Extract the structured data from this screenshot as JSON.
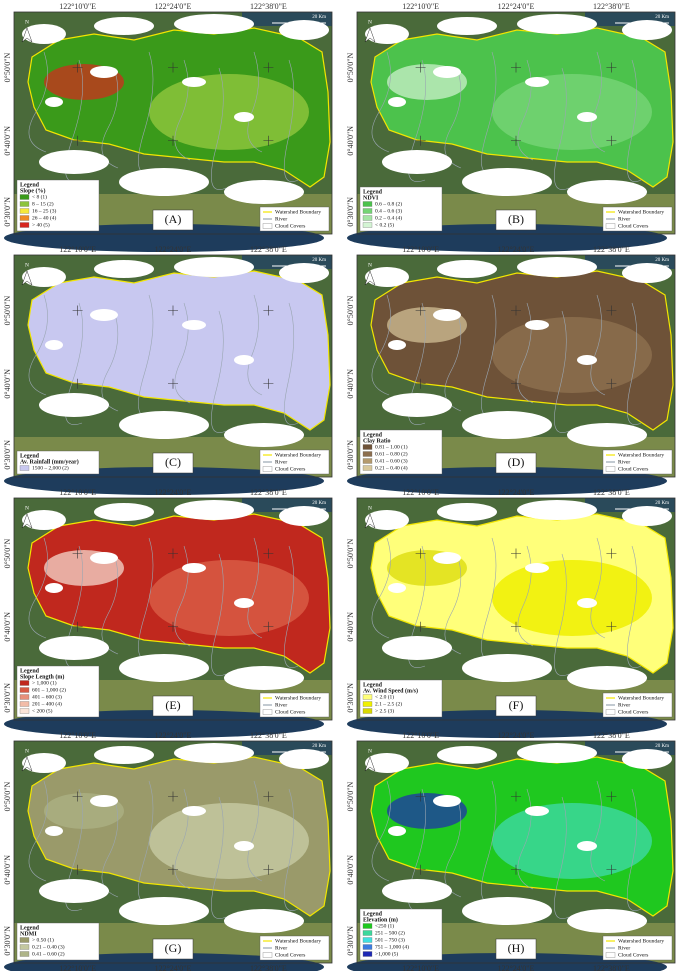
{
  "x_labels": [
    "122°10'0\"E",
    "122°24'0\"E",
    "122°38'0\"E"
  ],
  "y_labels": [
    "0°50'0\"N",
    "0°40'0\"N",
    "0°30'0\"N"
  ],
  "scale_label": "20 Km",
  "north_label": "N",
  "common_legend": [
    {
      "text": "Watershed Boundary",
      "color": "#f2e600"
    },
    {
      "text": "River",
      "color": "#9aa6b2"
    },
    {
      "text": "Cloud Covers",
      "color": "#ffffff"
    }
  ],
  "panels": [
    {
      "label": "(A)",
      "legend": "Legend",
      "title": "Slope (%)",
      "items": [
        {
          "text": "< 8 (1)",
          "color": "#3a9a1a"
        },
        {
          "text": "8 – 15 (2)",
          "color": "#8cc43c"
        },
        {
          "text": "16 – 25 (3)",
          "color": "#f5e83a"
        },
        {
          "text": "26 – 40 (4)",
          "color": "#f08a24"
        },
        {
          "text": "> 40 (5)",
          "color": "#d7261e"
        }
      ]
    },
    {
      "label": "(B)",
      "legend": "Legend",
      "title": "NDVI",
      "items": [
        {
          "text": "0.6 – 0.8 (2)",
          "color": "#4cc24c"
        },
        {
          "text": "0.4 – 0.6 (3)",
          "color": "#74d474"
        },
        {
          "text": "0.2 – 0.4 (4)",
          "color": "#a4e4a4"
        },
        {
          "text": "< 0.2 (5)",
          "color": "#d4f4d4"
        }
      ]
    },
    {
      "label": "(C)",
      "legend": "Legend",
      "title": "Av. Rainfall (mm/year)",
      "items": [
        {
          "text": "1500 – 2,000 (2)",
          "color": "#c8c8f0"
        }
      ]
    },
    {
      "label": "(D)",
      "legend": "Legend",
      "title": "Clay Ratio",
      "items": [
        {
          "text": "0.81 – 1.00 (1)",
          "color": "#6e5238"
        },
        {
          "text": "0.61 – 0.80 (2)",
          "color": "#8c6e4e"
        },
        {
          "text": "0.41 – 0.60 (3)",
          "color": "#b49a6e"
        },
        {
          "text": "0.21 – 0.40 (4)",
          "color": "#d8c89c"
        }
      ]
    },
    {
      "label": "(E)",
      "legend": "Legend",
      "title": "Slope Length (m)",
      "items": [
        {
          "text": "> 1,000 (1)",
          "color": "#c0281e"
        },
        {
          "text": "601 – 1,000 (2)",
          "color": "#d85a44"
        },
        {
          "text": "401 – 600 (3)",
          "color": "#e8907a"
        },
        {
          "text": "201 – 400 (4)",
          "color": "#f2bca8"
        },
        {
          "text": "< 200 (5)",
          "color": "#fae4d8"
        }
      ]
    },
    {
      "label": "(F)",
      "legend": "Legend",
      "title": "Av. Wind Speed (m/s)",
      "items": [
        {
          "text": "< 2.0 (1)",
          "color": "#ffff7a"
        },
        {
          "text": "2.1 – 2.5 (2)",
          "color": "#f0f000"
        },
        {
          "text": "> 2.5 (3)",
          "color": "#d8d800"
        }
      ]
    },
    {
      "label": "(G)",
      "legend": "Legend",
      "title": "NDMI",
      "items": [
        {
          "text": "> 0.50 (1)",
          "color": "#9a9a6a"
        },
        {
          "text": "0.21 – 0.40 (3)",
          "color": "#c4c8a0"
        },
        {
          "text": "0.41 – 0.60 (2)",
          "color": "#aeb488"
        }
      ]
    },
    {
      "label": "(H)",
      "legend": "Legend",
      "title": "Elevation (m)",
      "items": [
        {
          "text": "<250 (1)",
          "color": "#1fc81f"
        },
        {
          "text": "251 – 500 (2)",
          "color": "#3cd89c"
        },
        {
          "text": "501 – 750 (3)",
          "color": "#40e0e0"
        },
        {
          "text": "751 – 1,000 (4)",
          "color": "#3c7ce0"
        },
        {
          "text": ">1,000 (5)",
          "color": "#1e28b4"
        }
      ]
    }
  ]
}
